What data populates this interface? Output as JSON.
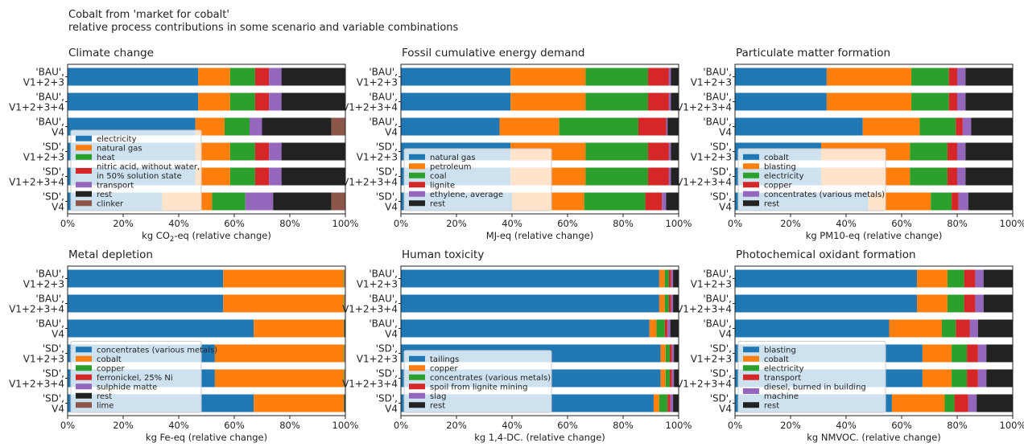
{
  "figure": {
    "title_line1": "Cobalt from 'market for cobalt'",
    "title_line2": "relative process contributions in some scenario and variable combinations"
  },
  "chart_data": [
    {
      "type": "bar",
      "orientation": "horizontal",
      "stacked": true,
      "title": "Climate change",
      "xlabel_prefix": "kg CO",
      "xlabel_sub": "2",
      "xlabel_suffix": "-eq (relative change)",
      "xlim": [
        0,
        100
      ],
      "xticks": [
        "0%",
        "20%",
        "40%",
        "60%",
        "80%",
        "100%"
      ],
      "categories": [
        [
          "'BAU',",
          "V1+2+3"
        ],
        [
          "'BAU',",
          "V1+2+3+4"
        ],
        [
          "'BAU',",
          "V4"
        ],
        [
          "'SD',",
          "V1+2+3"
        ],
        [
          "'SD',",
          "V1+2+3+4"
        ],
        [
          "'SD',",
          "V4"
        ]
      ],
      "legend_position": "lower-left",
      "series": [
        {
          "name": "electricity",
          "color": "#1f77b4",
          "values": [
            47,
            47,
            46,
            46,
            46,
            34
          ]
        },
        {
          "name": "natural gas",
          "color": "#ff7f0e",
          "values": [
            11.5,
            11.5,
            10.5,
            12.5,
            12.5,
            18
          ]
        },
        {
          "name": "heat",
          "color": "#2ca02c",
          "values": [
            9,
            9,
            9,
            9,
            9,
            12
          ]
        },
        {
          "name": "nitric acid, without water,\nin 50% solution state",
          "color": "#d62728",
          "values": [
            5,
            5,
            0,
            5,
            5,
            0
          ]
        },
        {
          "name": "transport",
          "color": "#9467bd",
          "values": [
            4.5,
            4.5,
            4.5,
            4.5,
            4.5,
            10
          ]
        },
        {
          "name": "rest",
          "color": "#222222",
          "values": [
            23,
            23,
            25,
            23,
            23,
            21
          ]
        },
        {
          "name": "clinker",
          "color": "#8c564b",
          "values": [
            0,
            0,
            5,
            0,
            0,
            5
          ]
        }
      ]
    },
    {
      "type": "bar",
      "orientation": "horizontal",
      "stacked": true,
      "title": "Fossil cumulative energy demand",
      "xlabel_prefix": "MJ-eq (relative change)",
      "xlabel_sub": "",
      "xlabel_suffix": "",
      "xlim": [
        0,
        100
      ],
      "xticks": [
        "0%",
        "20%",
        "40%",
        "60%",
        "80%",
        "100%"
      ],
      "categories": [
        [
          "'BAU',",
          "V1+2+3"
        ],
        [
          "'BAU',",
          "V1+2+3+4"
        ],
        [
          "'BAU',",
          "V4"
        ],
        [
          "'SD',",
          "V1+2+3"
        ],
        [
          "'SD',",
          "V1+2+3+4"
        ],
        [
          "'SD',",
          "V4"
        ]
      ],
      "legend_position": "lower-left",
      "series": [
        {
          "name": "natural gas",
          "color": "#1f77b4",
          "values": [
            39.5,
            39.5,
            35.5,
            39.5,
            39.5,
            40
          ]
        },
        {
          "name": "petroleum",
          "color": "#ff7f0e",
          "values": [
            27,
            27,
            21.5,
            27,
            27,
            26
          ]
        },
        {
          "name": "coal",
          "color": "#2ca02c",
          "values": [
            22.5,
            22.5,
            28.5,
            22.5,
            22.5,
            22
          ]
        },
        {
          "name": "lignite",
          "color": "#d62728",
          "values": [
            7.5,
            7.5,
            10,
            7.5,
            7.5,
            6
          ]
        },
        {
          "name": "ethylene, average",
          "color": "#9467bd",
          "values": [
            0.7,
            0.7,
            0.5,
            0.7,
            0.7,
            1.5
          ]
        },
        {
          "name": "rest",
          "color": "#222222",
          "values": [
            2.8,
            2.8,
            4,
            2.8,
            2.8,
            4.5
          ]
        }
      ]
    },
    {
      "type": "bar",
      "orientation": "horizontal",
      "stacked": true,
      "title": "Particulate matter formation",
      "xlabel_prefix": "kg PM10-eq (relative change)",
      "xlabel_sub": "",
      "xlabel_suffix": "",
      "xlim": [
        0,
        100
      ],
      "xticks": [
        "0%",
        "20%",
        "40%",
        "60%",
        "80%",
        "100%"
      ],
      "categories": [
        [
          "'BAU',",
          "V1+2+3"
        ],
        [
          "'BAU',",
          "V1+2+3+4"
        ],
        [
          "'BAU',",
          "V4"
        ],
        [
          "'SD',",
          "V1+2+3"
        ],
        [
          "'SD',",
          "V1+2+3+4"
        ],
        [
          "'SD',",
          "V4"
        ]
      ],
      "legend_position": "lower-left",
      "series": [
        {
          "name": "cobalt",
          "color": "#1f77b4",
          "values": [
            33,
            33,
            46,
            31,
            31,
            48
          ]
        },
        {
          "name": "blasting",
          "color": "#ff7f0e",
          "values": [
            30.5,
            30.5,
            20.5,
            32,
            32,
            22.5
          ]
        },
        {
          "name": "electricity",
          "color": "#2ca02c",
          "values": [
            13.5,
            13.5,
            13,
            13.5,
            13.5,
            7.5
          ]
        },
        {
          "name": "copper",
          "color": "#d62728",
          "values": [
            3,
            3,
            2.5,
            3.5,
            3.5,
            2.5
          ]
        },
        {
          "name": "concentrates (various metals)",
          "color": "#9467bd",
          "values": [
            3,
            3,
            3,
            3,
            3,
            3.5
          ]
        },
        {
          "name": "rest",
          "color": "#222222",
          "values": [
            17,
            17,
            15,
            17,
            17,
            16
          ]
        }
      ]
    },
    {
      "type": "bar",
      "orientation": "horizontal",
      "stacked": true,
      "title": "Metal depletion",
      "xlabel_prefix": "kg Fe-eq (relative change)",
      "xlabel_sub": "",
      "xlabel_suffix": "",
      "xlim": [
        0,
        100
      ],
      "xticks": [
        "0%",
        "20%",
        "40%",
        "60%",
        "80%",
        "100%"
      ],
      "categories": [
        [
          "'BAU',",
          "V1+2+3"
        ],
        [
          "'BAU',",
          "V1+2+3+4"
        ],
        [
          "'BAU',",
          "V4"
        ],
        [
          "'SD',",
          "V1+2+3"
        ],
        [
          "'SD',",
          "V1+2+3+4"
        ],
        [
          "'SD',",
          "V4"
        ]
      ],
      "legend_position": "lower-left",
      "series": [
        {
          "name": "concentrates (various metals)",
          "color": "#1f77b4",
          "values": [
            56,
            56,
            67,
            53,
            53,
            67
          ]
        },
        {
          "name": "cobalt",
          "color": "#ff7f0e",
          "values": [
            43.5,
            43.5,
            32.5,
            46.5,
            46.5,
            32.5
          ]
        },
        {
          "name": "copper",
          "color": "#2ca02c",
          "values": [
            0.2,
            0.2,
            0.1,
            0.2,
            0.2,
            0.1
          ]
        },
        {
          "name": "ferronickel, 25% Ni",
          "color": "#d62728",
          "values": [
            0.1,
            0.1,
            0,
            0.1,
            0.1,
            0
          ]
        },
        {
          "name": "sulphide matte",
          "color": "#9467bd",
          "values": [
            0.1,
            0.1,
            0,
            0.1,
            0.1,
            0
          ]
        },
        {
          "name": "rest",
          "color": "#222222",
          "values": [
            0.1,
            0.1,
            0.4,
            0.1,
            0.1,
            0.4
          ]
        },
        {
          "name": "lime",
          "color": "#8c564b",
          "values": [
            0,
            0,
            0,
            0,
            0,
            0
          ]
        }
      ]
    },
    {
      "type": "bar",
      "orientation": "horizontal",
      "stacked": true,
      "title": "Human toxicity",
      "xlabel_prefix": "kg 1,4-DC. (relative change)",
      "xlabel_sub": "",
      "xlabel_suffix": "",
      "xlim": [
        0,
        100
      ],
      "xticks": [
        "0%",
        "20%",
        "40%",
        "60%",
        "80%",
        "100%"
      ],
      "categories": [
        [
          "'BAU',",
          "V1+2+3"
        ],
        [
          "'BAU',",
          "V1+2+3+4"
        ],
        [
          "'BAU',",
          "V4"
        ],
        [
          "'SD',",
          "V1+2+3"
        ],
        [
          "'SD',",
          "V1+2+3+4"
        ],
        [
          "'SD',",
          "V4"
        ]
      ],
      "legend_position": "lower-left",
      "series": [
        {
          "name": "tailings",
          "color": "#1f77b4",
          "values": [
            93,
            93,
            89.5,
            93.5,
            93.5,
            91
          ]
        },
        {
          "name": "copper",
          "color": "#ff7f0e",
          "values": [
            2,
            2,
            2.5,
            1.8,
            1.8,
            2
          ]
        },
        {
          "name": "concentrates (various metals)",
          "color": "#2ca02c",
          "values": [
            1.5,
            1.5,
            3,
            1.5,
            1.5,
            3
          ]
        },
        {
          "name": "spoil from lignite mining",
          "color": "#d62728",
          "values": [
            0.8,
            0.8,
            1,
            0.8,
            0.8,
            1
          ]
        },
        {
          "name": "slag",
          "color": "#9467bd",
          "values": [
            0.7,
            0.7,
            1,
            0.7,
            0.7,
            1
          ]
        },
        {
          "name": "rest",
          "color": "#222222",
          "values": [
            2,
            2,
            3,
            1.7,
            1.7,
            2
          ]
        }
      ]
    },
    {
      "type": "bar",
      "orientation": "horizontal",
      "stacked": true,
      "title": "Photochemical oxidant formation",
      "xlabel_prefix": "kg NMVOC. (relative change)",
      "xlabel_sub": "",
      "xlabel_suffix": "",
      "xlim": [
        0,
        100
      ],
      "xticks": [
        "0%",
        "20%",
        "40%",
        "60%",
        "80%",
        "100%"
      ],
      "categories": [
        [
          "'BAU',",
          "V1+2+3"
        ],
        [
          "'BAU',",
          "V1+2+3+4"
        ],
        [
          "'BAU',",
          "V4"
        ],
        [
          "'SD',",
          "V1+2+3"
        ],
        [
          "'SD',",
          "V1+2+3+4"
        ],
        [
          "'SD',",
          "V4"
        ]
      ],
      "legend_position": "lower-left",
      "series": [
        {
          "name": "blasting",
          "color": "#1f77b4",
          "values": [
            65.5,
            65.5,
            55.5,
            67.5,
            67.5,
            56.5
          ]
        },
        {
          "name": "cobalt",
          "color": "#ff7f0e",
          "values": [
            11,
            11,
            19,
            10.5,
            10.5,
            19
          ]
        },
        {
          "name": "electricity",
          "color": "#2ca02c",
          "values": [
            6,
            6,
            5,
            5.5,
            5.5,
            3.5
          ]
        },
        {
          "name": "transport",
          "color": "#d62728",
          "values": [
            4,
            4,
            5,
            4,
            4,
            5
          ]
        },
        {
          "name": "diesel, burned in building\nmachine",
          "color": "#9467bd",
          "values": [
            3,
            3,
            3,
            3,
            3,
            3
          ]
        },
        {
          "name": "rest",
          "color": "#222222",
          "values": [
            10.5,
            10.5,
            12.5,
            9.5,
            9.5,
            13
          ]
        }
      ]
    }
  ]
}
